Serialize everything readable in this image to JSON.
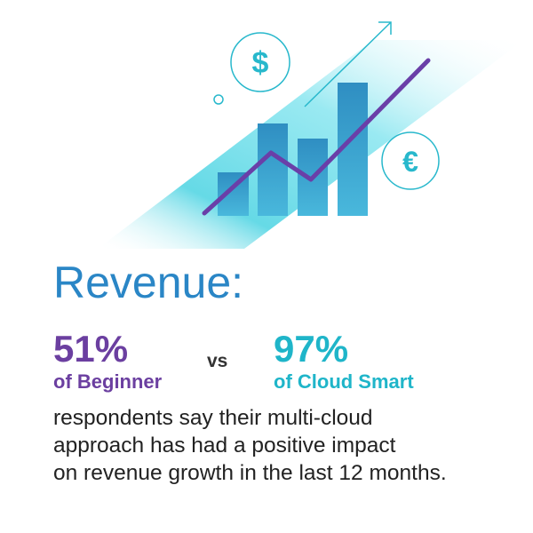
{
  "illustration": {
    "dollar_icon": "$",
    "euro_icon": "€"
  },
  "headline": "Revenue:",
  "comparison": {
    "left": {
      "stat": "51%",
      "label": "of Beginner"
    },
    "separator": "vs",
    "right": {
      "stat": "97%",
      "label": "of Cloud Smart"
    }
  },
  "body": {
    "lines": [
      "respondents say their multi-cloud",
      "approach has had a positive impact",
      "on revenue growth in the last 12 months."
    ]
  }
}
